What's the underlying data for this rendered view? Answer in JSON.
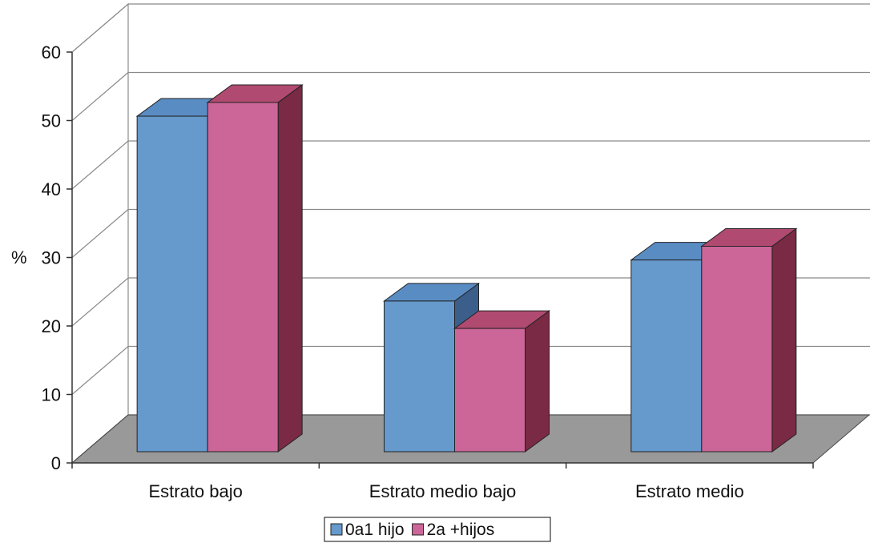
{
  "chart_data": {
    "type": "bar",
    "style": "3d-clustered-column",
    "categories": [
      "Estrato bajo",
      "Estrato medio bajo",
      "Estrato medio"
    ],
    "series": [
      {
        "name": "0a1 hijo",
        "values": [
          49,
          22,
          28
        ],
        "color": "#6699cc",
        "side_color": "#3b5f8a",
        "top_color": "#5a8cc4"
      },
      {
        "name": "2a +hijos",
        "values": [
          51,
          18,
          30
        ],
        "color": "#cc6699",
        "side_color": "#7a2a44",
        "top_color": "#b04a70"
      }
    ],
    "ylabel": "%",
    "ylim": [
      0,
      60
    ],
    "yticks": [
      0,
      10,
      20,
      30,
      40,
      50,
      60
    ],
    "grid": true,
    "legend": "bottom",
    "floor_color": "#999999",
    "wall_color": "#ffffff"
  }
}
